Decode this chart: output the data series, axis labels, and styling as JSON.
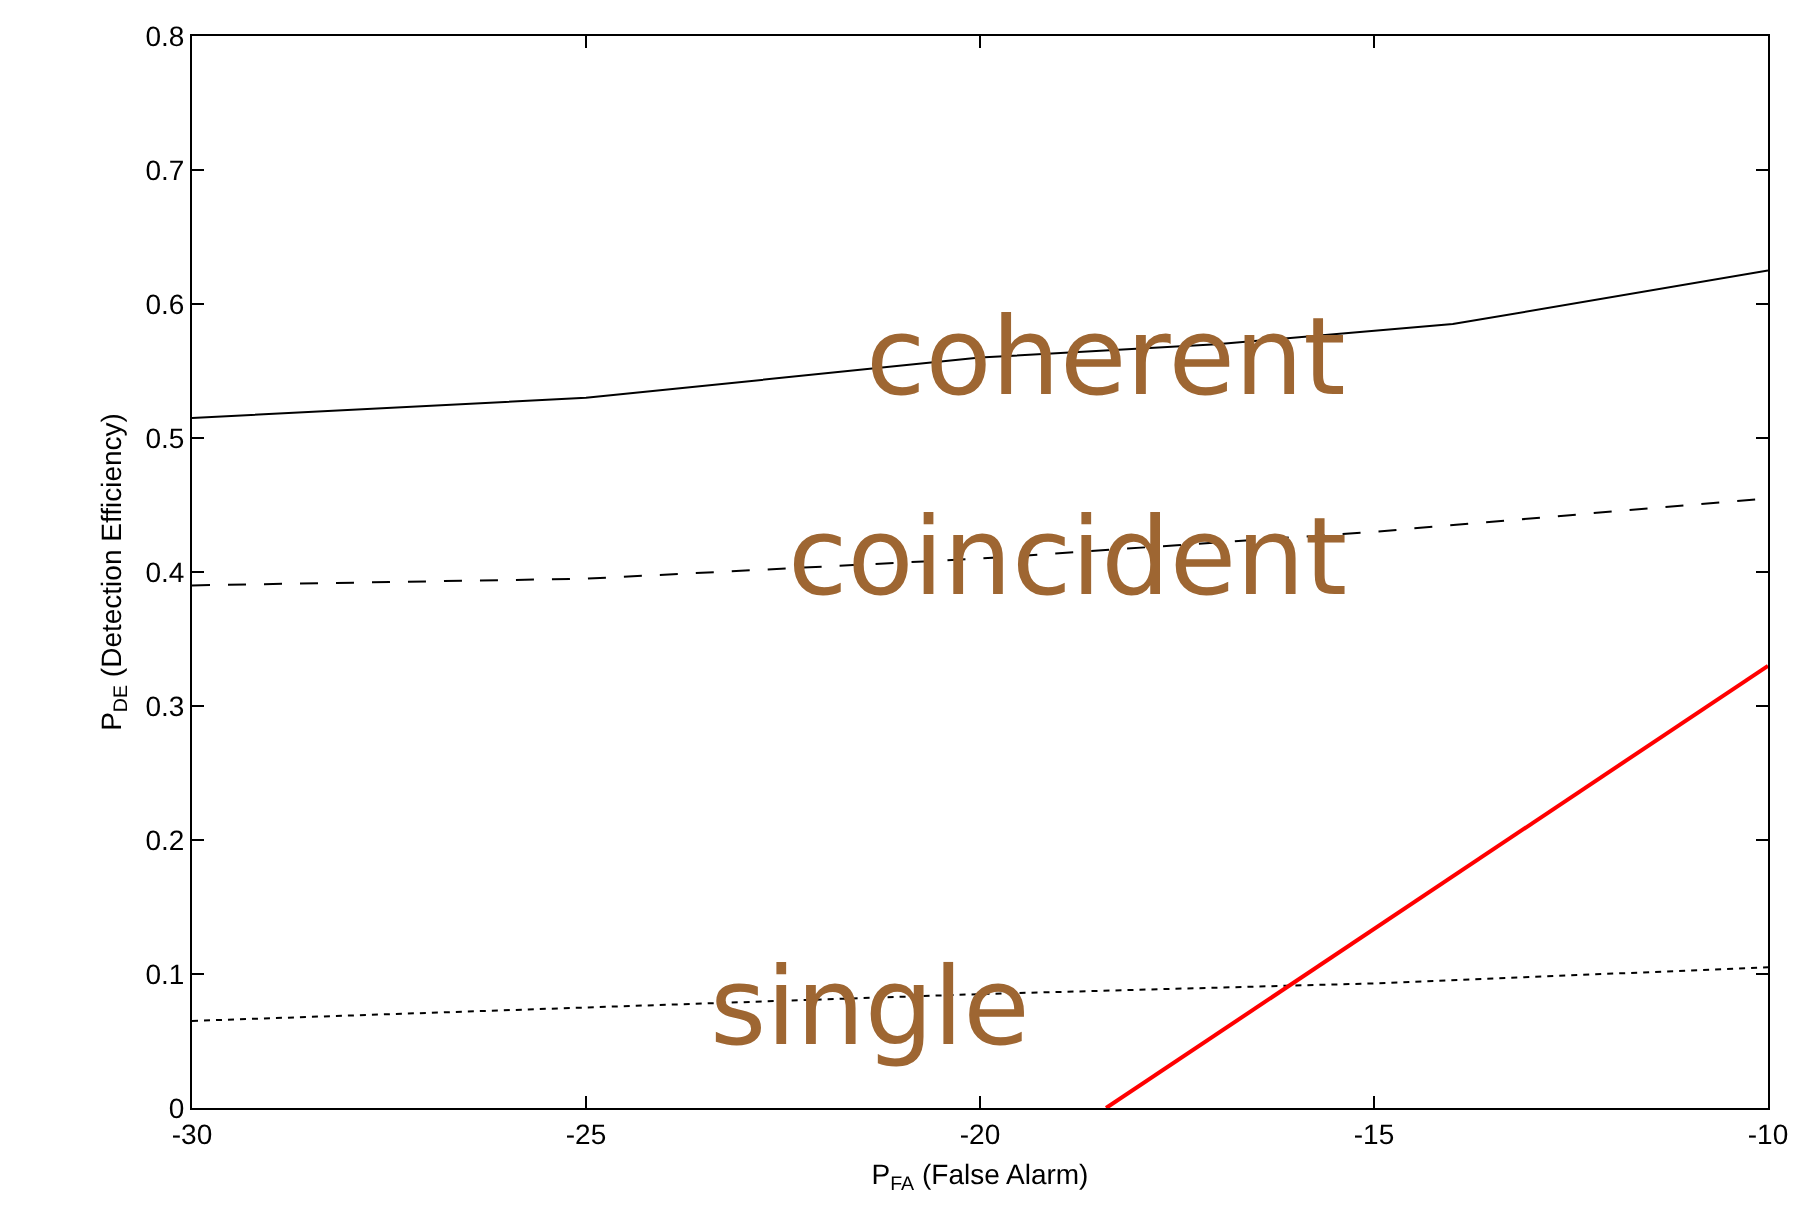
{
  "chart_data": {
    "type": "line",
    "xlabel": "P$_{FA}$ (False Alarm)",
    "ylabel": "P$_{DE}$ (Detection Efficiency)",
    "xlim": [
      -30,
      -10
    ],
    "xticks": [
      -30,
      -25,
      -20,
      -15,
      -10
    ],
    "ylim": [
      0,
      0.8
    ],
    "yticks": [
      0,
      0.1,
      0.2,
      0.3,
      0.4,
      0.5,
      0.6,
      0.7,
      0.8
    ],
    "grid": false,
    "legend": false,
    "marker": "none",
    "series": [
      {
        "name": "coherent",
        "color": "#000000",
        "line_style": "solid",
        "x": [
          -30,
          -25,
          -20,
          -17,
          -14,
          -10
        ],
        "values": [
          0.515,
          0.53,
          0.56,
          0.57,
          0.585,
          0.625
        ]
      },
      {
        "name": "coincident",
        "color": "#000000",
        "line_style": "dashed",
        "x": [
          -30,
          -25,
          -20,
          -17.5,
          -15,
          -10
        ],
        "values": [
          0.39,
          0.395,
          0.41,
          0.42,
          0.43,
          0.455
        ]
      },
      {
        "name": "single",
        "color": "#000000",
        "line_style": "dotted",
        "x": [
          -30,
          -25,
          -20,
          -15,
          -10
        ],
        "values": [
          0.065,
          0.075,
          0.085,
          0.093,
          0.105
        ]
      },
      {
        "color": "#ff0000",
        "line_style": "solid",
        "x": [
          -18.4,
          -10
        ],
        "values": [
          0,
          0.33
        ]
      }
    ]
  }
}
